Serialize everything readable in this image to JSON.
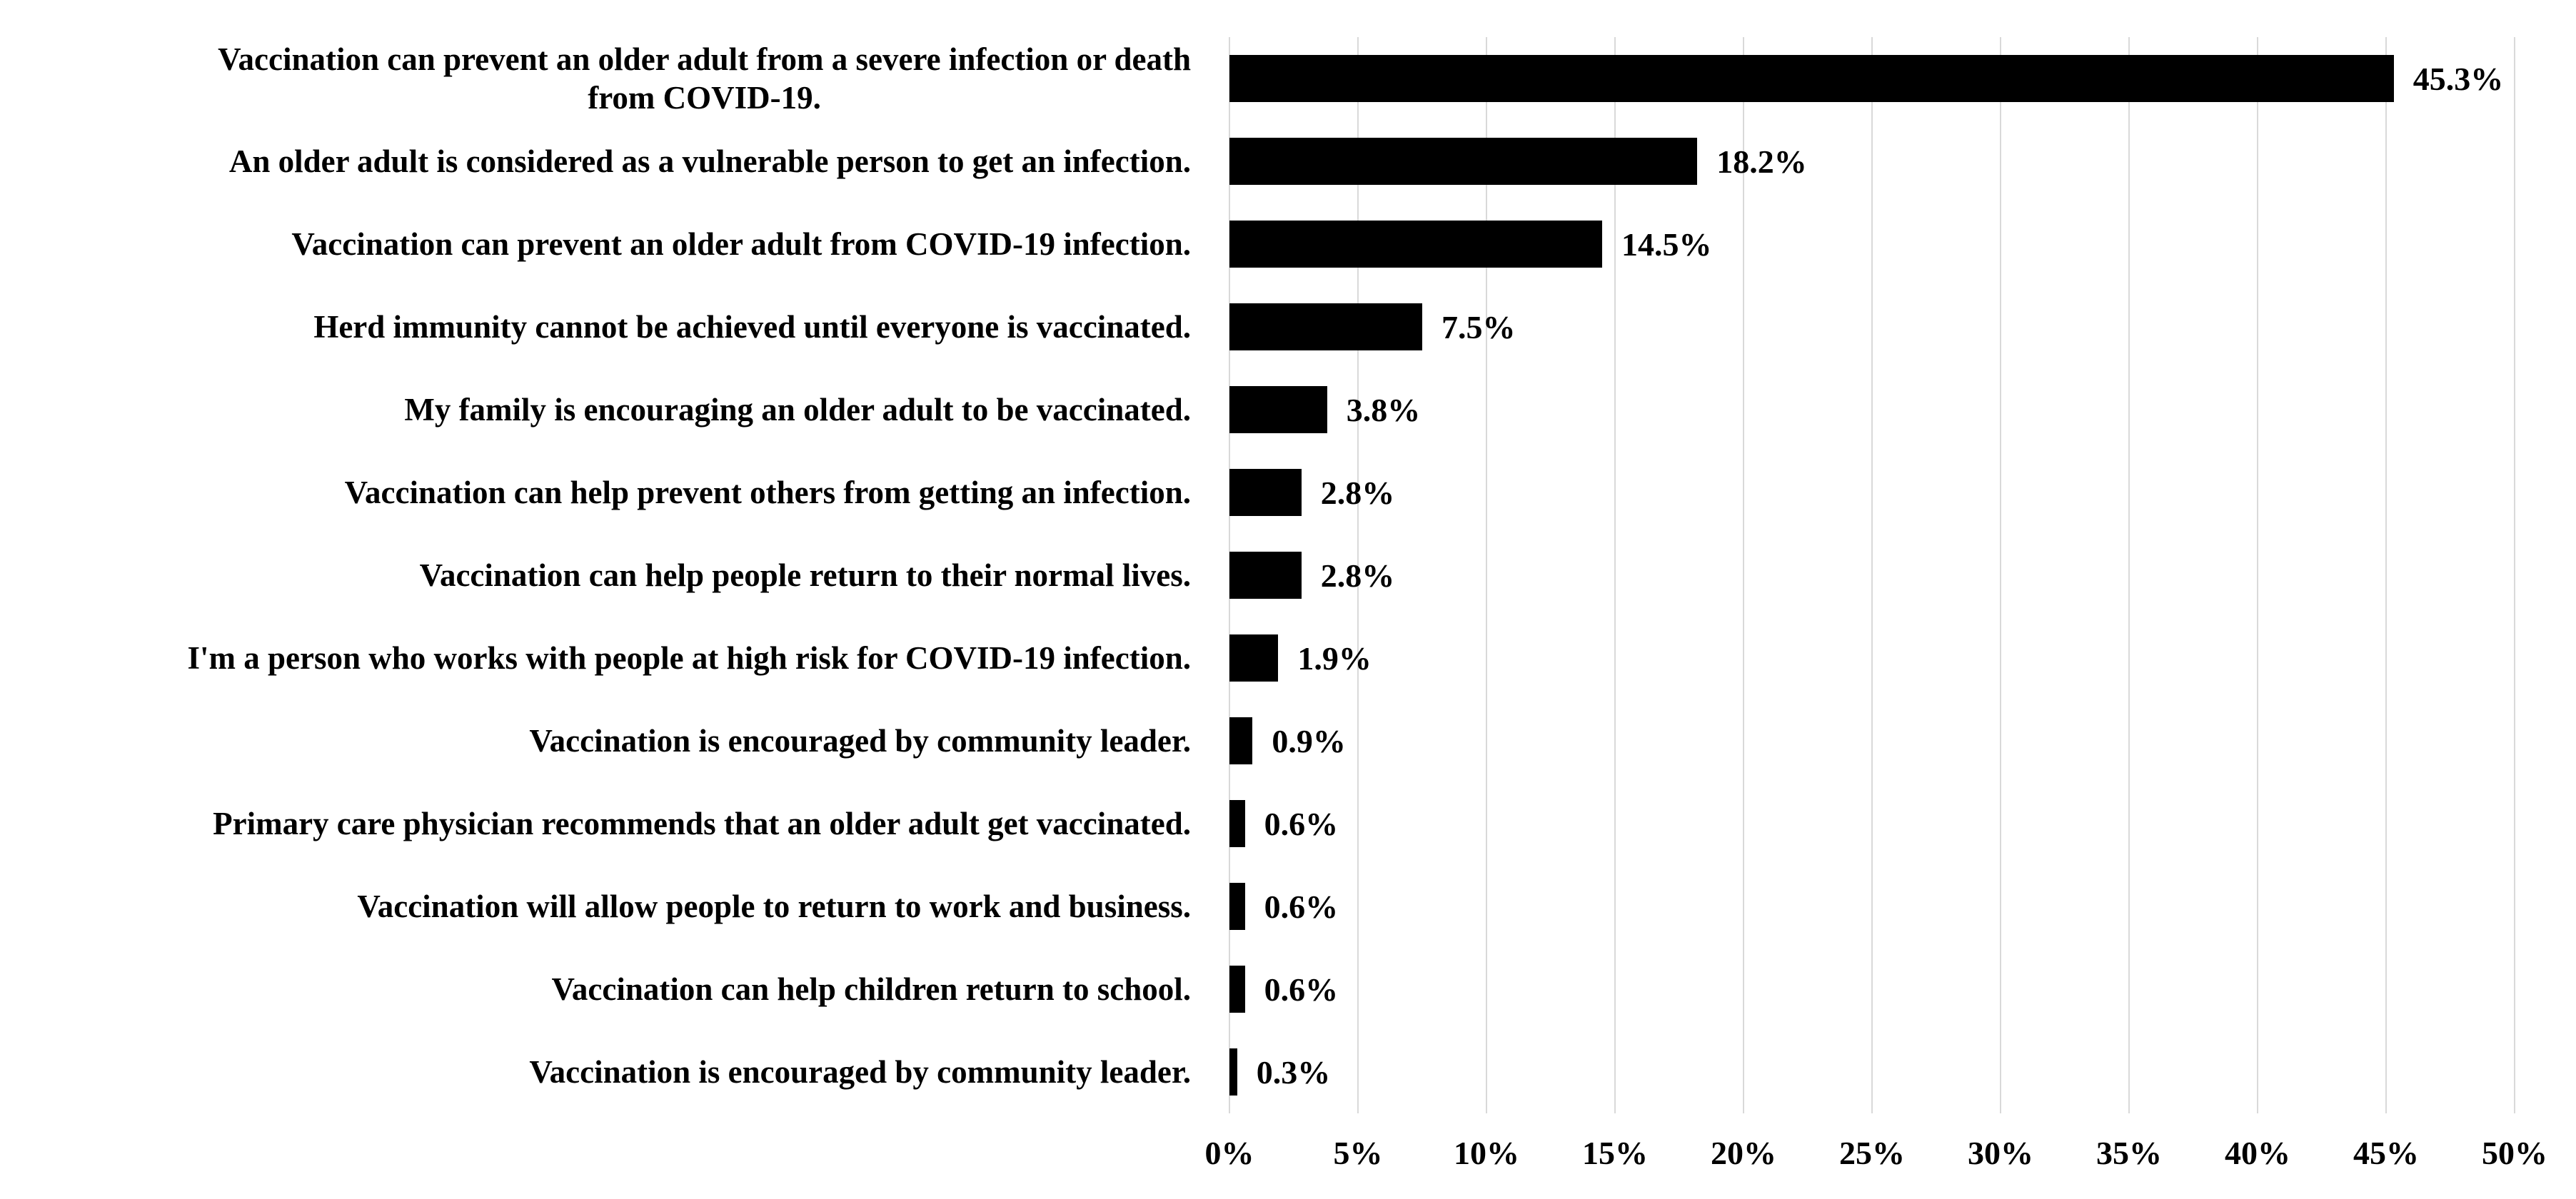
{
  "chart_data": {
    "type": "bar",
    "orientation": "horizontal",
    "title": "",
    "xlabel": "",
    "ylabel": "",
    "xlim": [
      0,
      50
    ],
    "grid": "vertical",
    "bar_color": "#000000",
    "gridline_color": "#d9d9d9",
    "text_color": "#000000",
    "background_color": "#ffffff",
    "x_ticks": [
      "0%",
      "5%",
      "10%",
      "15%",
      "20%",
      "25%",
      "30%",
      "35%",
      "40%",
      "45%",
      "50%"
    ],
    "x_tick_values": [
      0,
      5,
      10,
      15,
      20,
      25,
      30,
      35,
      40,
      45,
      50
    ],
    "categories": [
      "Vaccination can prevent an older adult from a severe infection or death\nfrom COVID-19.",
      "An older adult is considered as a vulnerable person to get an infection.",
      "Vaccination can prevent an older adult from COVID-19 infection.",
      "Herd immunity cannot be achieved until everyone is vaccinated.",
      "My family is encouraging an older adult to be vaccinated.",
      "Vaccination can help prevent others from getting an infection.",
      "Vaccination can help people return to their normal lives.",
      "I'm a person who works with people at high risk for COVID-19 infection.",
      "Vaccination is encouraged by community leader.",
      "Primary care physician recommends that an older adult get vaccinated.",
      "Vaccination will allow people to return to work and business.",
      "Vaccination can help children return to school.",
      "Vaccination is encouraged by community leader."
    ],
    "values": [
      45.3,
      18.2,
      14.5,
      7.5,
      3.8,
      2.8,
      2.8,
      1.9,
      0.9,
      0.6,
      0.6,
      0.6,
      0.3
    ],
    "value_labels": [
      "45.3%",
      "18.2%",
      "14.5%",
      "7.5%",
      "3.8%",
      "2.8%",
      "2.8%",
      "1.9%",
      "0.9%",
      "0.6%",
      "0.6%",
      "0.6%",
      "0.3%"
    ]
  }
}
